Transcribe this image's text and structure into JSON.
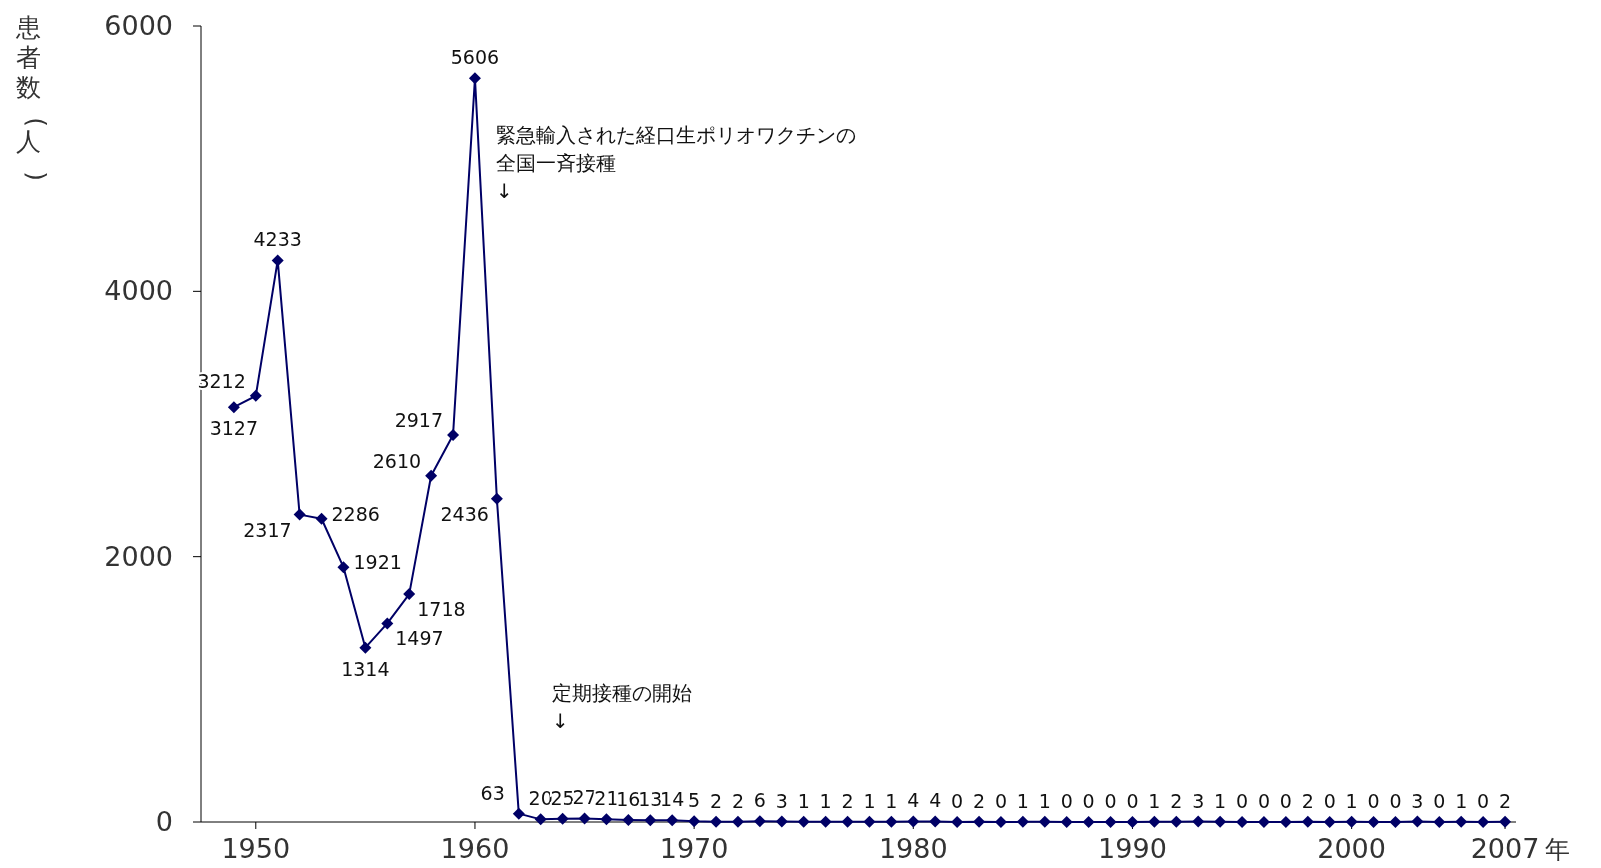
{
  "chart_data": {
    "type": "line",
    "ylabel": "患者数(人)",
    "xlabel": "年",
    "x": [
      1949,
      1950,
      1951,
      1952,
      1953,
      1954,
      1955,
      1956,
      1957,
      1958,
      1959,
      1960,
      1961,
      1962,
      1963,
      1964,
      1965,
      1966,
      1967,
      1968,
      1969,
      1970,
      1971,
      1972,
      1973,
      1974,
      1975,
      1976,
      1977,
      1978,
      1979,
      1980,
      1981,
      1982,
      1983,
      1984,
      1985,
      1986,
      1987,
      1988,
      1989,
      1990,
      1991,
      1992,
      1993,
      1994,
      1995,
      1996,
      1997,
      1998,
      1999,
      2000,
      2001,
      2002,
      2003,
      2004,
      2005,
      2006,
      2007
    ],
    "series": [
      {
        "color": "#000066",
        "values": [
          3127,
          3212,
          4233,
          2317,
          2286,
          1921,
          1314,
          1497,
          1718,
          2610,
          2917,
          5606,
          2436,
          63,
          20,
          25,
          27,
          21,
          16,
          13,
          14,
          5,
          2,
          2,
          6,
          3,
          1,
          1,
          2,
          1,
          1,
          4,
          4,
          0,
          2,
          0,
          1,
          1,
          0,
          0,
          0,
          0,
          1,
          2,
          3,
          1,
          0,
          0,
          0,
          2,
          0,
          1,
          0,
          0,
          3,
          0,
          1,
          0,
          2
        ]
      }
    ],
    "xlim": [
      1947.5,
      2007.5
    ],
    "xticks": [
      1950,
      1960,
      1970,
      1980,
      1990,
      2000,
      2007
    ],
    "ylim": [
      0,
      6000
    ],
    "yticks": [
      0,
      2000,
      4000,
      6000
    ],
    "marker": "diamond",
    "line_style": "solid",
    "grid": false,
    "data_labels": true,
    "annotations": [
      "緊急輸入された経口生ポリオワクチンの全国一斉接種\n↓",
      "定期接種の開始\n↓"
    ]
  }
}
